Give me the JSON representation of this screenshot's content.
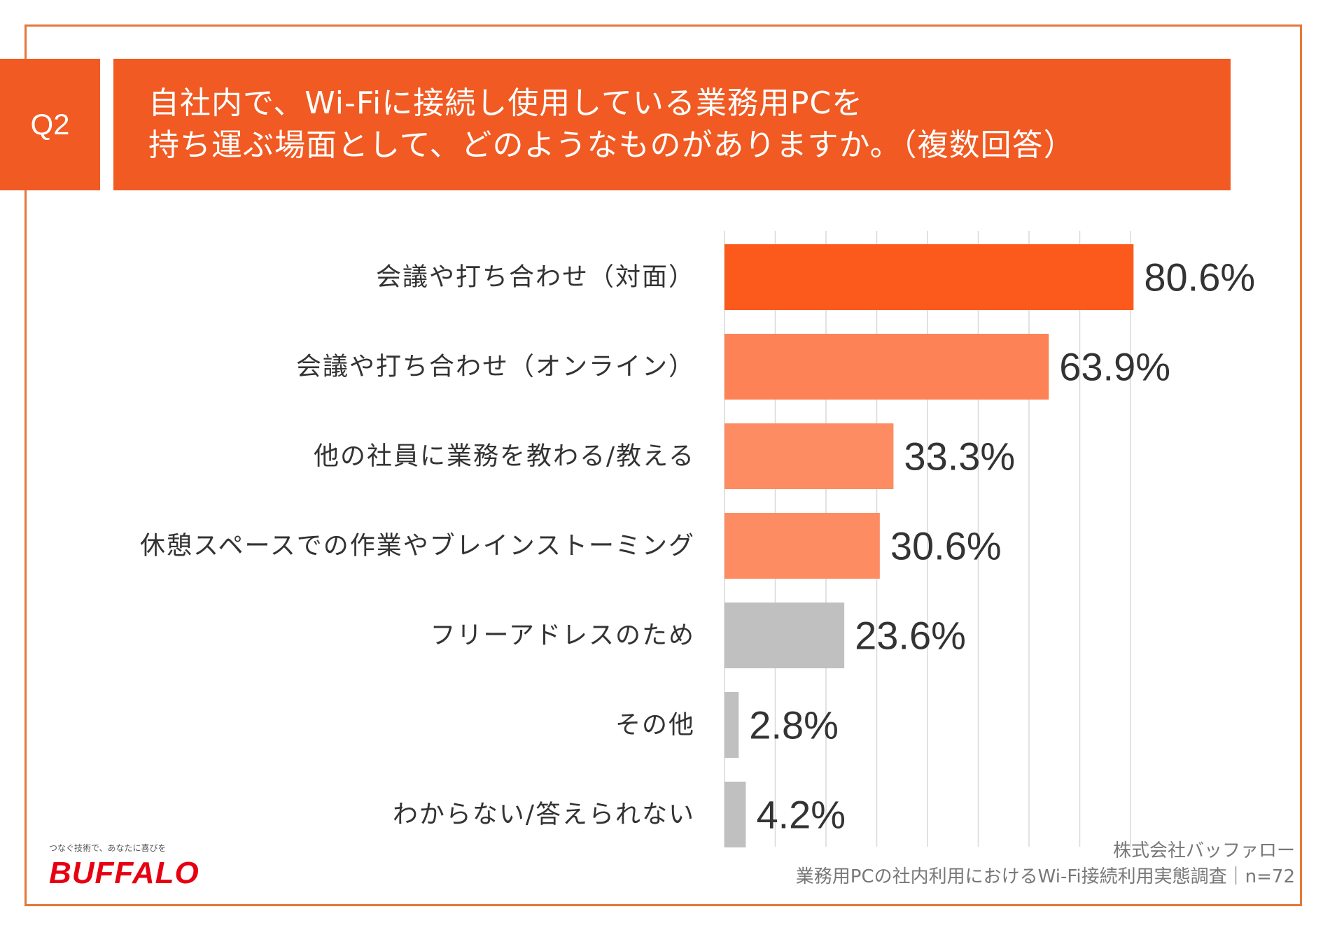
{
  "header": {
    "badge": "Q2",
    "title_line1": "自社内で、Wi-Fiに接続し使用している業務用PCを",
    "title_line2": "持ち運ぶ場面として、どのようなものがありますか。（複数回答）"
  },
  "colors": {
    "accent": "#f15a22",
    "frame": "#e5773a",
    "bar_primary": "#fc5a1c",
    "bar_secondary": "#fd8356",
    "bar_tertiary": "#fd8c62",
    "bar_gray": "#c0c0c0",
    "gridline": "#d9d9d9",
    "label_text": "#333333",
    "value_text": "#333333",
    "logo": "#e60012"
  },
  "chart_data": {
    "type": "bar",
    "orientation": "horizontal",
    "title": "",
    "xlim": [
      0,
      100
    ],
    "grid": true,
    "value_suffix": "%",
    "categories": [
      "会議や打ち合わせ（対面）",
      "会議や打ち合わせ（オンライン）",
      "他の社員に業務を教わる/教える",
      "休憩スペースでの作業やブレインストーミング",
      "フリーアドレスのため",
      "その他",
      "わからない/答えられない"
    ],
    "values": [
      80.6,
      63.9,
      33.3,
      30.6,
      23.6,
      2.8,
      4.2
    ],
    "bar_color_keys": [
      "bar_primary",
      "bar_secondary",
      "bar_tertiary",
      "bar_tertiary",
      "bar_gray",
      "bar_gray",
      "bar_gray"
    ]
  },
  "footer": {
    "company": "株式会社バッファロー",
    "survey": "業務用PCの社内利用におけるWi-Fi接続利用実態調査｜n=72"
  },
  "brand": {
    "tagline": "つなぐ技術で、あなたに喜びを",
    "logo_text": "BUFFALO"
  }
}
